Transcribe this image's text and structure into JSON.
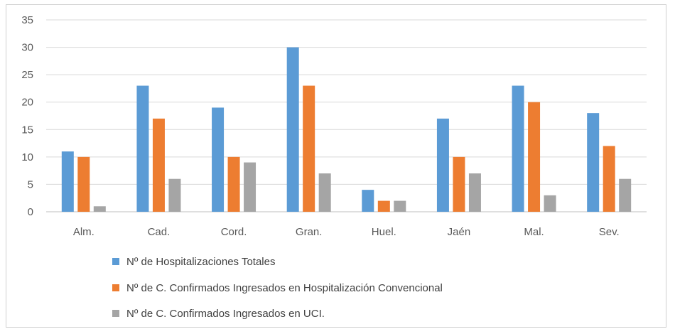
{
  "chart_data": {
    "type": "bar",
    "categories": [
      "Alm.",
      "Cad.",
      "Cord.",
      "Gran.",
      "Huel.",
      "Jaén",
      "Mal.",
      "Sev."
    ],
    "series": [
      {
        "name": "Nº de Hospitalizaciones Totales",
        "color": "#5b9bd5",
        "values": [
          11,
          23,
          19,
          30,
          4,
          17,
          23,
          18
        ]
      },
      {
        "name": "Nº de C. Confirmados Ingresados en Hospitalización Convencional",
        "color": "#ed7d31",
        "values": [
          10,
          17,
          10,
          23,
          2,
          10,
          20,
          12
        ]
      },
      {
        "name": "Nº de C. Confirmados Ingresados en UCI.",
        "color": "#a5a5a5",
        "values": [
          1,
          6,
          9,
          7,
          2,
          7,
          3,
          6
        ]
      }
    ],
    "yticks": [
      "0",
      "5",
      "10",
      "15",
      "20",
      "25",
      "30",
      "35"
    ],
    "ylim": [
      0,
      35
    ],
    "grid": true,
    "legend_position": "bottom-left"
  }
}
